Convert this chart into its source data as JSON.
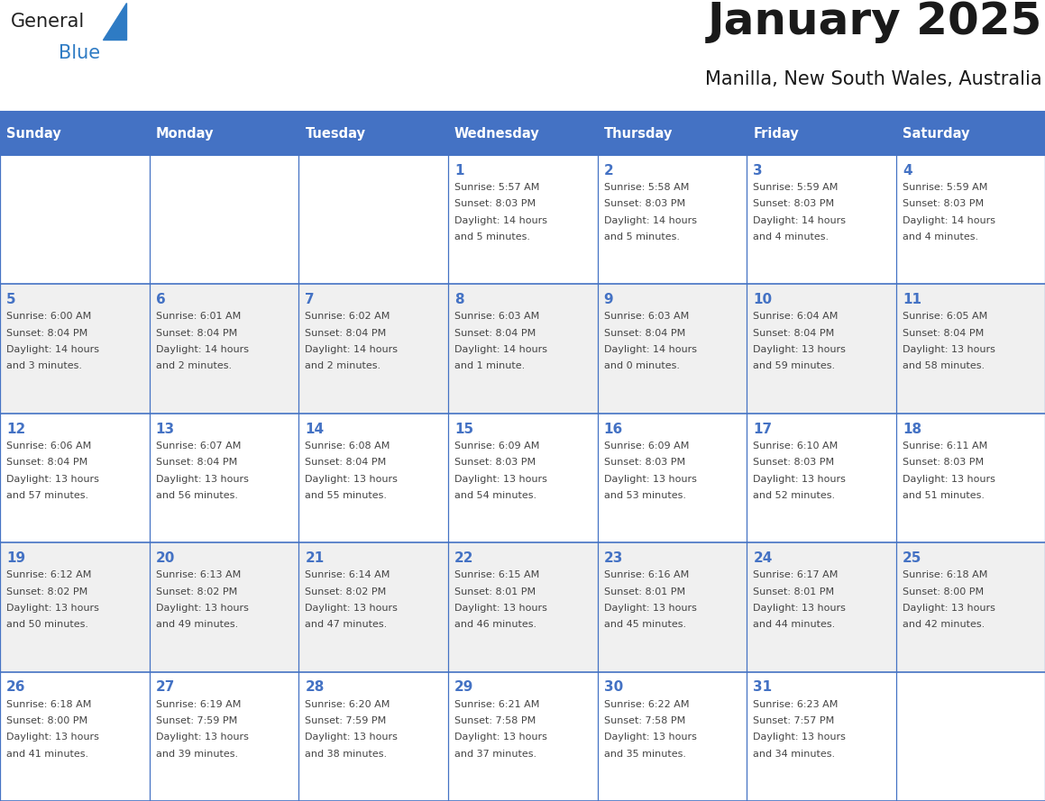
{
  "title": "January 2025",
  "subtitle": "Manilla, New South Wales, Australia",
  "days_of_week": [
    "Sunday",
    "Monday",
    "Tuesday",
    "Wednesday",
    "Thursday",
    "Friday",
    "Saturday"
  ],
  "header_bg_color": "#4472C4",
  "header_text_color": "#FFFFFF",
  "cell_bg_color": "#FFFFFF",
  "alt_cell_bg_color": "#F0F0F0",
  "grid_line_color": "#4472C4",
  "day_number_color": "#4472C4",
  "text_color": "#444444",
  "title_color": "#1a1a1a",
  "logo_general_color": "#222222",
  "logo_blue_color": "#2E7BC4",
  "weeks": [
    {
      "days": [
        {
          "day": null,
          "info": null
        },
        {
          "day": null,
          "info": null
        },
        {
          "day": null,
          "info": null
        },
        {
          "day": 1,
          "info": "Sunrise: 5:57 AM\nSunset: 8:03 PM\nDaylight: 14 hours\nand 5 minutes."
        },
        {
          "day": 2,
          "info": "Sunrise: 5:58 AM\nSunset: 8:03 PM\nDaylight: 14 hours\nand 5 minutes."
        },
        {
          "day": 3,
          "info": "Sunrise: 5:59 AM\nSunset: 8:03 PM\nDaylight: 14 hours\nand 4 minutes."
        },
        {
          "day": 4,
          "info": "Sunrise: 5:59 AM\nSunset: 8:03 PM\nDaylight: 14 hours\nand 4 minutes."
        }
      ]
    },
    {
      "days": [
        {
          "day": 5,
          "info": "Sunrise: 6:00 AM\nSunset: 8:04 PM\nDaylight: 14 hours\nand 3 minutes."
        },
        {
          "day": 6,
          "info": "Sunrise: 6:01 AM\nSunset: 8:04 PM\nDaylight: 14 hours\nand 2 minutes."
        },
        {
          "day": 7,
          "info": "Sunrise: 6:02 AM\nSunset: 8:04 PM\nDaylight: 14 hours\nand 2 minutes."
        },
        {
          "day": 8,
          "info": "Sunrise: 6:03 AM\nSunset: 8:04 PM\nDaylight: 14 hours\nand 1 minute."
        },
        {
          "day": 9,
          "info": "Sunrise: 6:03 AM\nSunset: 8:04 PM\nDaylight: 14 hours\nand 0 minutes."
        },
        {
          "day": 10,
          "info": "Sunrise: 6:04 AM\nSunset: 8:04 PM\nDaylight: 13 hours\nand 59 minutes."
        },
        {
          "day": 11,
          "info": "Sunrise: 6:05 AM\nSunset: 8:04 PM\nDaylight: 13 hours\nand 58 minutes."
        }
      ]
    },
    {
      "days": [
        {
          "day": 12,
          "info": "Sunrise: 6:06 AM\nSunset: 8:04 PM\nDaylight: 13 hours\nand 57 minutes."
        },
        {
          "day": 13,
          "info": "Sunrise: 6:07 AM\nSunset: 8:04 PM\nDaylight: 13 hours\nand 56 minutes."
        },
        {
          "day": 14,
          "info": "Sunrise: 6:08 AM\nSunset: 8:04 PM\nDaylight: 13 hours\nand 55 minutes."
        },
        {
          "day": 15,
          "info": "Sunrise: 6:09 AM\nSunset: 8:03 PM\nDaylight: 13 hours\nand 54 minutes."
        },
        {
          "day": 16,
          "info": "Sunrise: 6:09 AM\nSunset: 8:03 PM\nDaylight: 13 hours\nand 53 minutes."
        },
        {
          "day": 17,
          "info": "Sunrise: 6:10 AM\nSunset: 8:03 PM\nDaylight: 13 hours\nand 52 minutes."
        },
        {
          "day": 18,
          "info": "Sunrise: 6:11 AM\nSunset: 8:03 PM\nDaylight: 13 hours\nand 51 minutes."
        }
      ]
    },
    {
      "days": [
        {
          "day": 19,
          "info": "Sunrise: 6:12 AM\nSunset: 8:02 PM\nDaylight: 13 hours\nand 50 minutes."
        },
        {
          "day": 20,
          "info": "Sunrise: 6:13 AM\nSunset: 8:02 PM\nDaylight: 13 hours\nand 49 minutes."
        },
        {
          "day": 21,
          "info": "Sunrise: 6:14 AM\nSunset: 8:02 PM\nDaylight: 13 hours\nand 47 minutes."
        },
        {
          "day": 22,
          "info": "Sunrise: 6:15 AM\nSunset: 8:01 PM\nDaylight: 13 hours\nand 46 minutes."
        },
        {
          "day": 23,
          "info": "Sunrise: 6:16 AM\nSunset: 8:01 PM\nDaylight: 13 hours\nand 45 minutes."
        },
        {
          "day": 24,
          "info": "Sunrise: 6:17 AM\nSunset: 8:01 PM\nDaylight: 13 hours\nand 44 minutes."
        },
        {
          "day": 25,
          "info": "Sunrise: 6:18 AM\nSunset: 8:00 PM\nDaylight: 13 hours\nand 42 minutes."
        }
      ]
    },
    {
      "days": [
        {
          "day": 26,
          "info": "Sunrise: 6:18 AM\nSunset: 8:00 PM\nDaylight: 13 hours\nand 41 minutes."
        },
        {
          "day": 27,
          "info": "Sunrise: 6:19 AM\nSunset: 7:59 PM\nDaylight: 13 hours\nand 39 minutes."
        },
        {
          "day": 28,
          "info": "Sunrise: 6:20 AM\nSunset: 7:59 PM\nDaylight: 13 hours\nand 38 minutes."
        },
        {
          "day": 29,
          "info": "Sunrise: 6:21 AM\nSunset: 7:58 PM\nDaylight: 13 hours\nand 37 minutes."
        },
        {
          "day": 30,
          "info": "Sunrise: 6:22 AM\nSunset: 7:58 PM\nDaylight: 13 hours\nand 35 minutes."
        },
        {
          "day": 31,
          "info": "Sunrise: 6:23 AM\nSunset: 7:57 PM\nDaylight: 13 hours\nand 34 minutes."
        },
        {
          "day": null,
          "info": null
        }
      ]
    }
  ]
}
